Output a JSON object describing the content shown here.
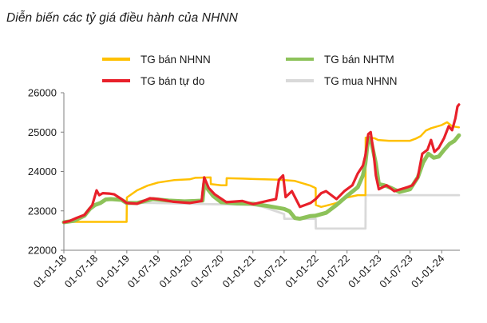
{
  "chart_data": {
    "type": "line",
    "title": "Diễn biến các tỷ giá điều hành của NHNN",
    "xlabel": "",
    "ylabel": "",
    "ylim": [
      22000,
      26000
    ],
    "yticks": [
      22000,
      23000,
      24000,
      25000,
      26000
    ],
    "xlim": [
      "2018-01-01",
      "2024-04-15"
    ],
    "xticks": [
      "01-01-18",
      "01-07-18",
      "01-01-19",
      "01-07-19",
      "01-01-20",
      "01-07-20",
      "01-01-21",
      "01-07-21",
      "01-01-22",
      "01-07-22",
      "01-01-23",
      "01-07-23",
      "01-01-24"
    ],
    "grid": false,
    "legend_position": "top",
    "series": [
      {
        "name": "TG bán NHNN",
        "color": "#ffc000",
        "points": [
          [
            "2018-01-01",
            22720
          ],
          [
            "2018-09-01",
            22720
          ],
          [
            "2018-12-31",
            22720
          ],
          [
            "2019-01-01",
            23340
          ],
          [
            "2019-03-01",
            23520
          ],
          [
            "2019-05-01",
            23640
          ],
          [
            "2019-07-01",
            23720
          ],
          [
            "2019-10-01",
            23780
          ],
          [
            "2019-12-31",
            23800
          ],
          [
            "2020-02-01",
            23840
          ],
          [
            "2020-05-01",
            23850
          ],
          [
            "2020-05-02",
            23680
          ],
          [
            "2020-07-01",
            23650
          ],
          [
            "2020-08-01",
            23650
          ],
          [
            "2020-08-02",
            23830
          ],
          [
            "2020-11-01",
            23820
          ],
          [
            "2021-01-01",
            23810
          ],
          [
            "2021-06-01",
            23790
          ],
          [
            "2021-09-01",
            23760
          ],
          [
            "2021-12-01",
            23640
          ],
          [
            "2021-12-31",
            23580
          ],
          [
            "2022-01-01",
            23150
          ],
          [
            "2022-02-01",
            23100
          ],
          [
            "2022-03-01",
            23130
          ],
          [
            "2022-05-01",
            23200
          ],
          [
            "2022-07-01",
            23340
          ],
          [
            "2022-09-01",
            23400
          ],
          [
            "2022-10-16",
            23400
          ],
          [
            "2022-10-17",
            24860
          ],
          [
            "2022-11-15",
            24860
          ],
          [
            "2022-12-10",
            24840
          ],
          [
            "2022-12-28",
            24800
          ],
          [
            "2023-03-01",
            24780
          ],
          [
            "2023-05-01",
            24780
          ],
          [
            "2023-07-01",
            24780
          ],
          [
            "2023-08-01",
            24830
          ],
          [
            "2023-09-01",
            24900
          ],
          [
            "2023-10-01",
            25040
          ],
          [
            "2023-11-01",
            25100
          ],
          [
            "2024-01-01",
            25180
          ],
          [
            "2024-02-01",
            25250
          ],
          [
            "2024-03-01",
            25150
          ],
          [
            "2024-04-10",
            25120
          ]
        ]
      },
      {
        "name": "TG bán NHTM",
        "color": "#8dc25a",
        "points": [
          [
            "2018-01-01",
            22710
          ],
          [
            "2018-03-01",
            22750
          ],
          [
            "2018-05-01",
            22880
          ],
          [
            "2018-06-01",
            23050
          ],
          [
            "2018-07-01",
            23150
          ],
          [
            "2018-08-01",
            23200
          ],
          [
            "2018-09-01",
            23290
          ],
          [
            "2018-10-01",
            23300
          ],
          [
            "2018-12-01",
            23280
          ],
          [
            "2018-12-31",
            23200
          ],
          [
            "2019-03-01",
            23200
          ],
          [
            "2019-06-01",
            23300
          ],
          [
            "2019-09-01",
            23260
          ],
          [
            "2019-12-01",
            23240
          ],
          [
            "2020-02-01",
            23250
          ],
          [
            "2020-03-15",
            23260
          ],
          [
            "2020-03-25",
            23700
          ],
          [
            "2020-04-15",
            23550
          ],
          [
            "2020-05-15",
            23380
          ],
          [
            "2020-07-01",
            23220
          ],
          [
            "2020-10-01",
            23190
          ],
          [
            "2021-01-01",
            23180
          ],
          [
            "2021-04-01",
            23120
          ],
          [
            "2021-07-01",
            23050
          ],
          [
            "2021-08-01",
            22990
          ],
          [
            "2021-09-01",
            22820
          ],
          [
            "2021-10-01",
            22800
          ],
          [
            "2021-12-01",
            22870
          ],
          [
            "2022-01-01",
            22880
          ],
          [
            "2022-03-01",
            22950
          ],
          [
            "2022-05-01",
            23150
          ],
          [
            "2022-07-01",
            23380
          ],
          [
            "2022-09-01",
            23600
          ],
          [
            "2022-10-01",
            23900
          ],
          [
            "2022-10-15",
            24200
          ],
          [
            "2022-11-01",
            24860
          ],
          [
            "2022-11-20",
            24720
          ],
          [
            "2022-12-15",
            24200
          ],
          [
            "2023-01-01",
            23680
          ],
          [
            "2023-02-01",
            23650
          ],
          [
            "2023-03-15",
            23580
          ],
          [
            "2023-05-01",
            23480
          ],
          [
            "2023-07-01",
            23550
          ],
          [
            "2023-08-15",
            23850
          ],
          [
            "2023-09-15",
            24230
          ],
          [
            "2023-10-15",
            24450
          ],
          [
            "2023-11-15",
            24350
          ],
          [
            "2023-12-15",
            24380
          ],
          [
            "2024-01-15",
            24550
          ],
          [
            "2024-02-15",
            24700
          ],
          [
            "2024-03-15",
            24780
          ],
          [
            "2024-04-10",
            24920
          ]
        ]
      },
      {
        "name": "TG bán tự do",
        "color": "#e8202a",
        "points": [
          [
            "2018-01-01",
            22710
          ],
          [
            "2018-02-01",
            22740
          ],
          [
            "2018-03-15",
            22820
          ],
          [
            "2018-05-01",
            22900
          ],
          [
            "2018-06-15",
            23150
          ],
          [
            "2018-07-10",
            23520
          ],
          [
            "2018-07-25",
            23400
          ],
          [
            "2018-08-15",
            23450
          ],
          [
            "2018-09-20",
            23440
          ],
          [
            "2018-10-20",
            23420
          ],
          [
            "2018-12-01",
            23300
          ],
          [
            "2018-12-31",
            23200
          ],
          [
            "2019-03-01",
            23180
          ],
          [
            "2019-05-15",
            23320
          ],
          [
            "2019-07-01",
            23300
          ],
          [
            "2019-10-01",
            23230
          ],
          [
            "2019-12-31",
            23200
          ],
          [
            "2020-03-10",
            23250
          ],
          [
            "2020-03-25",
            23850
          ],
          [
            "2020-04-20",
            23580
          ],
          [
            "2020-05-25",
            23420
          ],
          [
            "2020-08-01",
            23220
          ],
          [
            "2020-11-01",
            23250
          ],
          [
            "2021-01-01",
            23170
          ],
          [
            "2021-04-01",
            23260
          ],
          [
            "2021-05-15",
            23300
          ],
          [
            "2021-06-01",
            23790
          ],
          [
            "2021-06-25",
            23900
          ],
          [
            "2021-07-10",
            23350
          ],
          [
            "2021-08-15",
            23500
          ],
          [
            "2021-10-01",
            23100
          ],
          [
            "2021-12-01",
            23200
          ],
          [
            "2021-12-31",
            23300
          ],
          [
            "2022-02-01",
            23450
          ],
          [
            "2022-03-01",
            23500
          ],
          [
            "2022-05-01",
            23300
          ],
          [
            "2022-06-15",
            23500
          ],
          [
            "2022-08-01",
            23650
          ],
          [
            "2022-09-01",
            23950
          ],
          [
            "2022-10-01",
            24150
          ],
          [
            "2022-10-15",
            24400
          ],
          [
            "2022-11-01",
            24950
          ],
          [
            "2022-11-15",
            25000
          ],
          [
            "2022-12-01",
            24500
          ],
          [
            "2022-12-15",
            23900
          ],
          [
            "2023-01-01",
            23550
          ],
          [
            "2023-02-15",
            23650
          ],
          [
            "2023-04-01",
            23500
          ],
          [
            "2023-06-15",
            23600
          ],
          [
            "2023-07-15",
            23650
          ],
          [
            "2023-08-15",
            23850
          ],
          [
            "2023-09-10",
            24450
          ],
          [
            "2023-10-10",
            24550
          ],
          [
            "2023-10-31",
            24800
          ],
          [
            "2023-11-20",
            24500
          ],
          [
            "2023-12-15",
            24600
          ],
          [
            "2024-01-15",
            24850
          ],
          [
            "2024-02-10",
            25150
          ],
          [
            "2024-03-01",
            25050
          ],
          [
            "2024-03-20",
            25350
          ],
          [
            "2024-04-01",
            25650
          ],
          [
            "2024-04-10",
            25700
          ]
        ]
      },
      {
        "name": "TG mua NHNN",
        "color": "#d9d9d9",
        "points": [
          [
            "2018-12-31",
            23200
          ],
          [
            "2019-01-01",
            23200
          ],
          [
            "2019-06-01",
            23200
          ],
          [
            "2020-01-01",
            23180
          ],
          [
            "2021-01-01",
            23150
          ],
          [
            "2021-03-01",
            23100
          ],
          [
            "2021-07-01",
            22920
          ],
          [
            "2021-07-02",
            22800
          ],
          [
            "2021-12-31",
            22800
          ],
          [
            "2022-01-01",
            22550
          ],
          [
            "2022-10-16",
            22550
          ],
          [
            "2022-10-17",
            23400
          ],
          [
            "2024-04-10",
            23400
          ]
        ]
      }
    ]
  }
}
